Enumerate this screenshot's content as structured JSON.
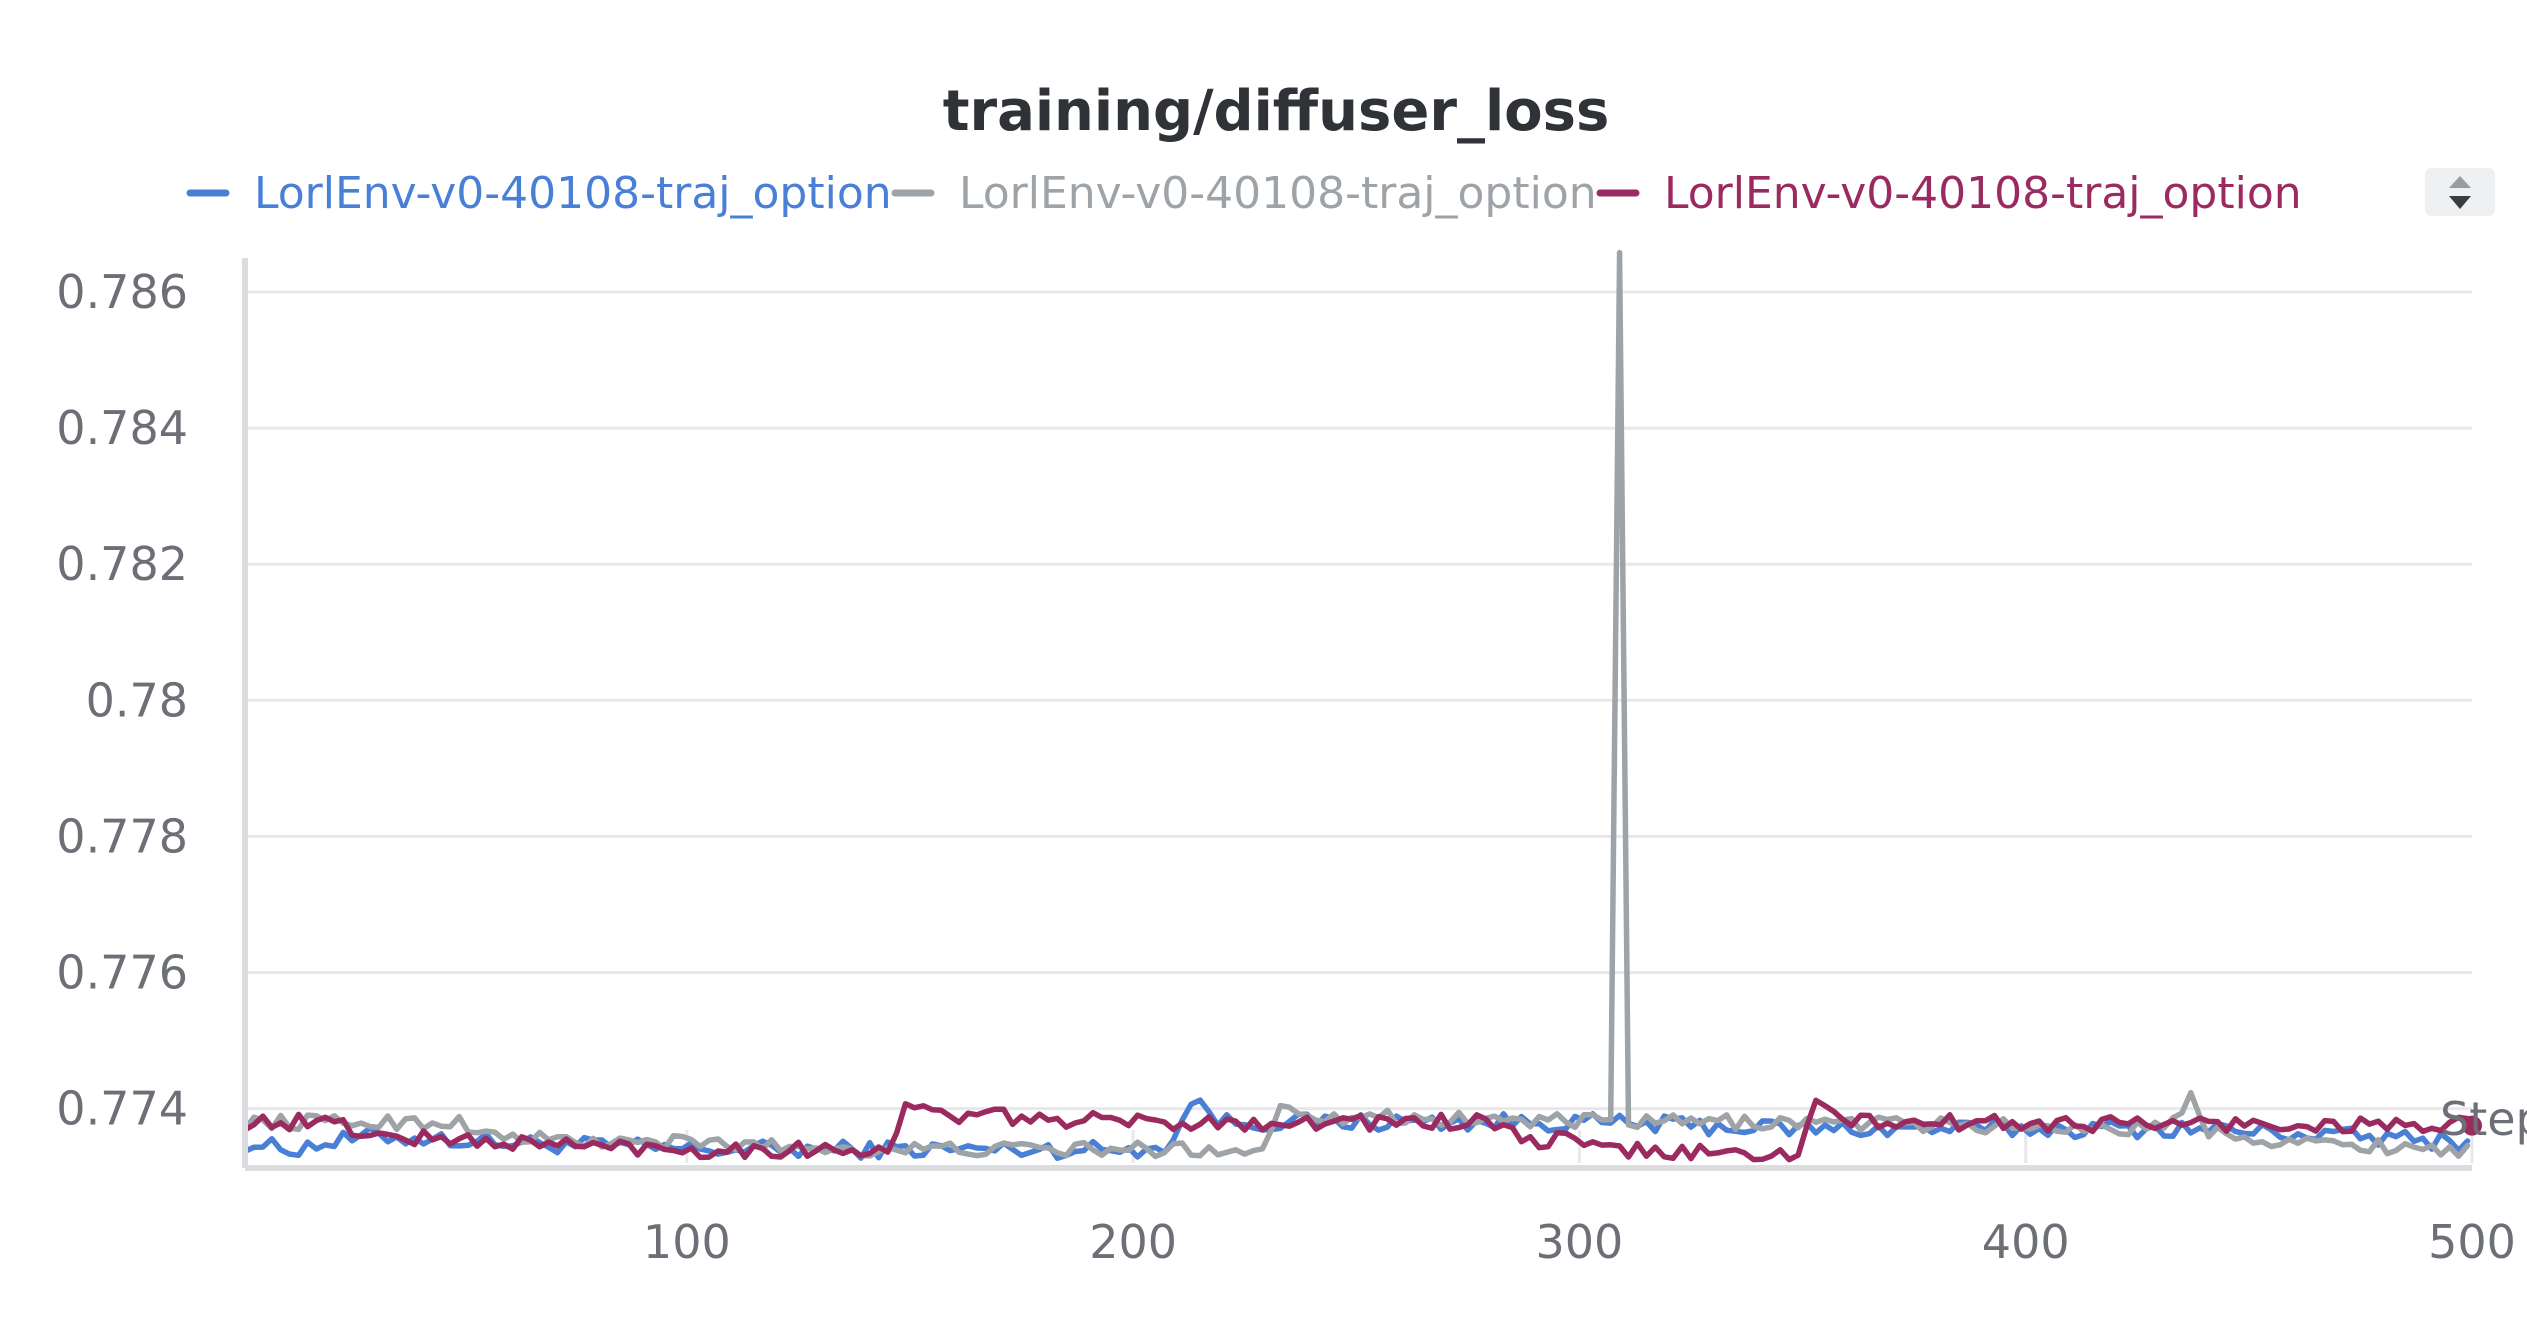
{
  "chart_data": {
    "type": "line",
    "title": "training/diffuser_loss",
    "xlabel": "Step",
    "ylabel": "",
    "xlim": [
      1,
      500
    ],
    "ylim": [
      0.7732,
      0.7865
    ],
    "x_ticks": [
      100,
      200,
      300,
      400,
      500
    ],
    "x_tick_labels": [
      "100",
      "200",
      "300",
      "400",
      "500"
    ],
    "y_ticks": [
      0.774,
      0.776,
      0.778,
      0.78,
      0.782,
      0.784,
      0.786
    ],
    "y_tick_labels": [
      "0.774",
      "0.776",
      "0.778",
      "0.78",
      "0.782",
      "0.784",
      "0.786"
    ],
    "grid": true,
    "legend_position": "top",
    "series": [
      {
        "name": "LorlEnv-v0-40108-traj_option",
        "color": "#4a7fd6",
        "anchors": [
          [
            1,
            0.7735
          ],
          [
            10,
            0.7734
          ],
          [
            30,
            0.7736
          ],
          [
            60,
            0.7735
          ],
          [
            100,
            0.7734
          ],
          [
            140,
            0.7734
          ],
          [
            200,
            0.7734
          ],
          [
            210,
            0.7735
          ],
          [
            212,
            0.7742
          ],
          [
            220,
            0.7738
          ],
          [
            300,
            0.7738
          ],
          [
            350,
            0.7737
          ],
          [
            440,
            0.7737
          ],
          [
            470,
            0.7736
          ],
          [
            500,
            0.7735
          ]
        ],
        "noise": 0.00013
      },
      {
        "name": "LorlEnv-v0-40108-traj_option",
        "color": "#9ea3a8",
        "anchors": [
          [
            1,
            0.7738
          ],
          [
            40,
            0.7738
          ],
          [
            50,
            0.7738
          ],
          [
            55,
            0.7736
          ],
          [
            80,
            0.7735
          ],
          [
            100,
            0.7735
          ],
          [
            140,
            0.7734
          ],
          [
            200,
            0.7734
          ],
          [
            230,
            0.7734
          ],
          [
            233,
            0.7741
          ],
          [
            240,
            0.7739
          ],
          [
            305,
            0.7738
          ],
          [
            308,
            0.7738
          ],
          [
            309,
            0.7865
          ],
          [
            310,
            0.7738
          ],
          [
            350,
            0.7738
          ],
          [
            430,
            0.7737
          ],
          [
            438,
            0.7742
          ],
          [
            440,
            0.7737
          ],
          [
            460,
            0.7735
          ],
          [
            500,
            0.7734
          ]
        ],
        "noise": 0.00011
      },
      {
        "name": "LorlEnv-v0-40108-traj_option",
        "color": "#9a2a5f",
        "anchors": [
          [
            1,
            0.7738
          ],
          [
            20,
            0.7738
          ],
          [
            30,
            0.7736
          ],
          [
            60,
            0.7735
          ],
          [
            100,
            0.7734
          ],
          [
            140,
            0.7734
          ],
          [
            146,
            0.7734
          ],
          [
            148,
            0.774
          ],
          [
            160,
            0.7739
          ],
          [
            200,
            0.7738
          ],
          [
            280,
            0.7738
          ],
          [
            285,
            0.7736
          ],
          [
            290,
            0.7735
          ],
          [
            300,
            0.7736
          ],
          [
            302,
            0.7734
          ],
          [
            350,
            0.7733
          ],
          [
            352,
            0.7741
          ],
          [
            360,
            0.7738
          ],
          [
            500,
            0.77375
          ]
        ],
        "noise": 0.00012
      }
    ]
  }
}
